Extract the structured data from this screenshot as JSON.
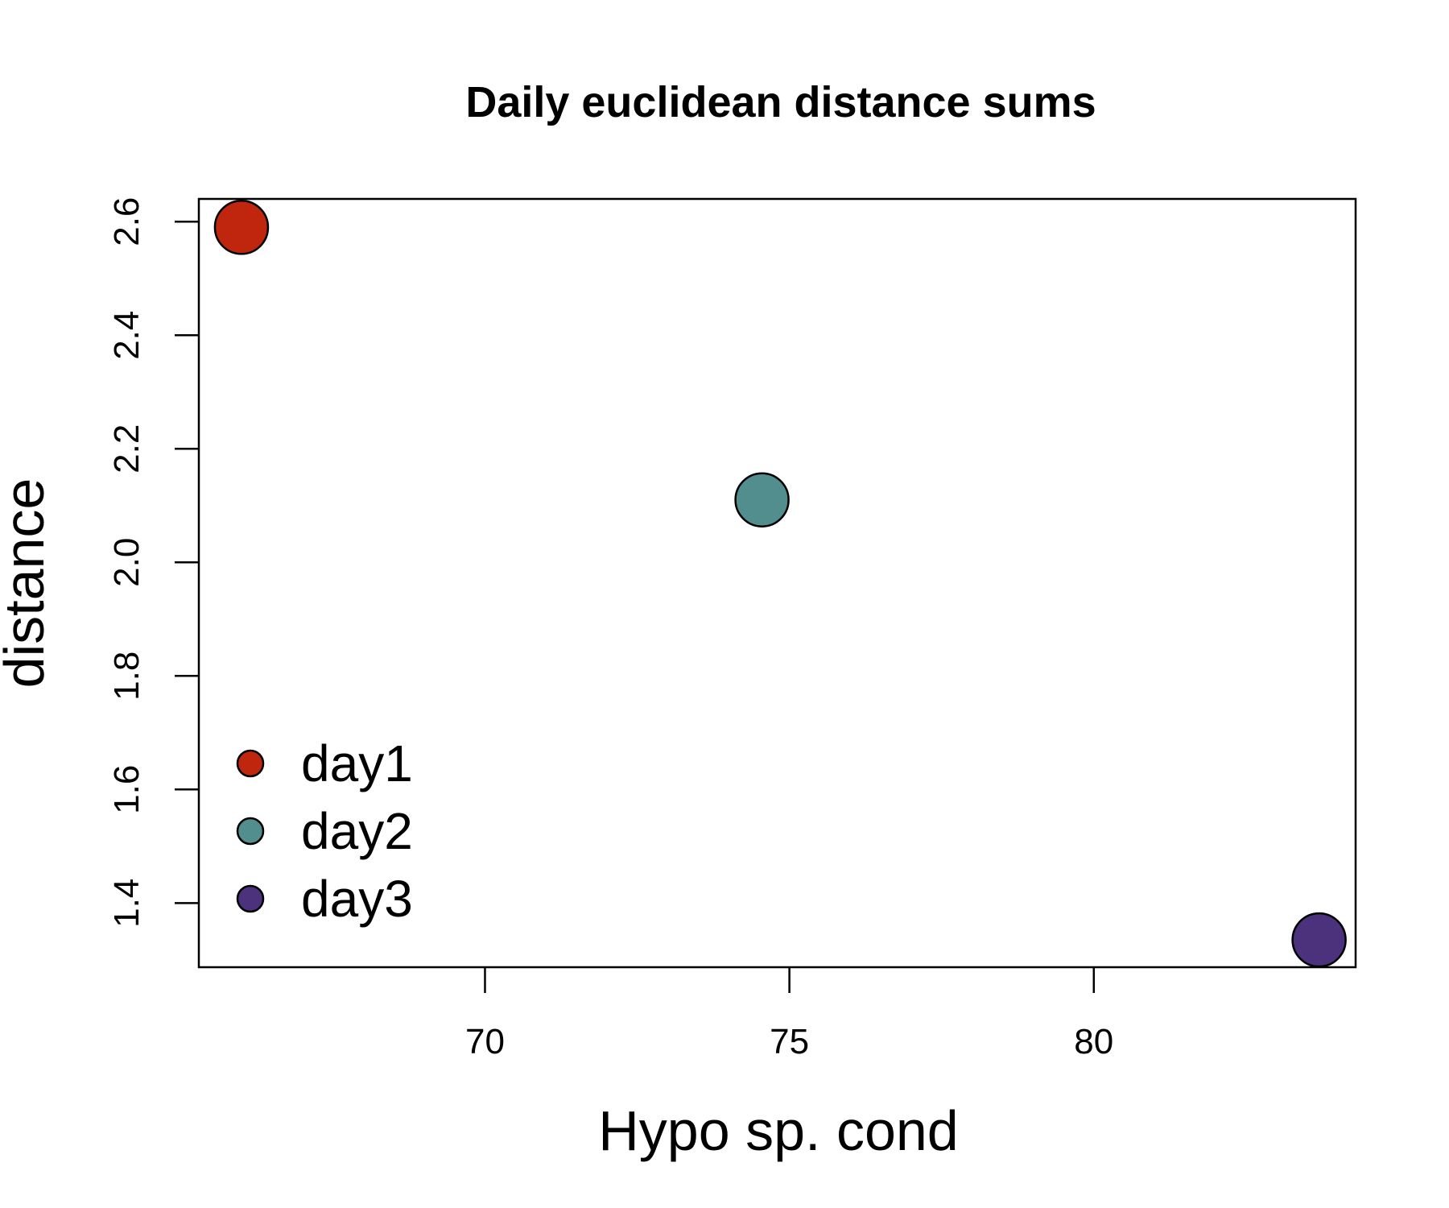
{
  "chart_data": {
    "type": "scatter",
    "title": "Daily euclidean distance sums",
    "xlabel": "Hypo sp. cond",
    "ylabel": "distance",
    "xlim": [
      65.3,
      84.3
    ],
    "ylim": [
      1.287,
      2.64
    ],
    "x_ticks": [
      70,
      75,
      80
    ],
    "x_tick_labels": [
      "70",
      "75",
      "80"
    ],
    "y_ticks": [
      1.4,
      1.6,
      1.8,
      2.0,
      2.2,
      2.4,
      2.6
    ],
    "y_tick_labels": [
      "1.4",
      "1.6",
      "1.8",
      "2.0",
      "2.2",
      "2.4",
      "2.6"
    ],
    "grid": false,
    "legend_position": "bottom-left",
    "series": [
      {
        "name": "day1",
        "color": "#C0260E",
        "points": [
          {
            "x": 66.0,
            "y": 2.59
          }
        ]
      },
      {
        "name": "day2",
        "color": "#528E8E",
        "points": [
          {
            "x": 74.55,
            "y": 2.11
          }
        ]
      },
      {
        "name": "day3",
        "color": "#4C317C",
        "points": [
          {
            "x": 83.7,
            "y": 1.335
          }
        ]
      }
    ]
  }
}
